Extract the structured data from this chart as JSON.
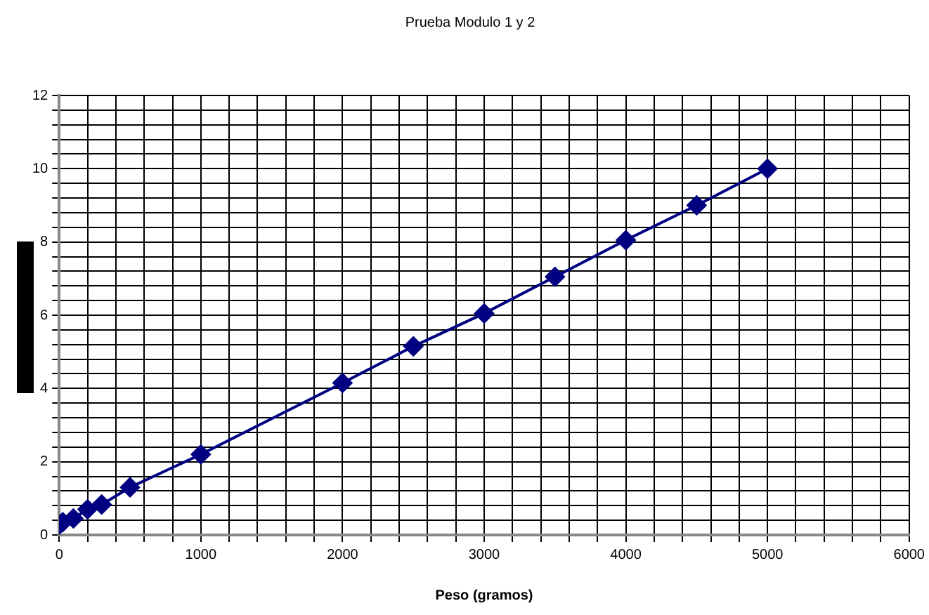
{
  "chart_data": {
    "type": "line",
    "title": "Prueba Modulo 1 y 2",
    "xlabel": "Peso (gramos)",
    "x": [
      0,
      25,
      100,
      200,
      300,
      500,
      1000,
      2000,
      2500,
      3000,
      3500,
      4000,
      4500,
      5000
    ],
    "series": [
      {
        "color": "#000080",
        "values": [
          0.28,
          0.35,
          0.45,
          0.7,
          0.83,
          1.3,
          2.2,
          4.15,
          5.15,
          6.05,
          7.05,
          8.05,
          9.0,
          10.0
        ]
      }
    ],
    "xlim": [
      0,
      6000
    ],
    "xticks": [
      0,
      {
        "value": 200,
        "label": null
      },
      {
        "value": 400,
        "label": null
      },
      {
        "value": 600,
        "label": null
      },
      {
        "value": 800,
        "label": null
      },
      1000,
      {
        "value": 1200,
        "label": null
      },
      {
        "value": 1400,
        "label": null
      },
      {
        "value": 1600,
        "label": null
      },
      {
        "value": 1800,
        "label": null
      },
      2000,
      {
        "value": 2200,
        "label": null
      },
      {
        "value": 2400,
        "label": null
      },
      {
        "value": 2600,
        "label": null
      },
      {
        "value": 2800,
        "label": null
      },
      3000,
      {
        "value": 3200,
        "label": null
      },
      {
        "value": 3400,
        "label": null
      },
      {
        "value": 3600,
        "label": null
      },
      {
        "value": 3800,
        "label": null
      },
      4000,
      {
        "value": 4200,
        "label": null
      },
      {
        "value": 4400,
        "label": null
      },
      {
        "value": 4600,
        "label": null
      },
      {
        "value": 4800,
        "label": null
      },
      5000,
      {
        "value": 5200,
        "label": null
      },
      {
        "value": 5400,
        "label": null
      },
      {
        "value": 5600,
        "label": null
      },
      {
        "value": 5800,
        "label": null
      },
      6000
    ],
    "ylim": [
      0,
      12
    ],
    "yticks": [
      0,
      {
        "value": 0.4,
        "label": null
      },
      {
        "value": 0.8,
        "label": null
      },
      {
        "value": 1.2,
        "label": null
      },
      {
        "value": 1.6,
        "label": null
      },
      2,
      {
        "value": 2.4,
        "label": null
      },
      {
        "value": 2.8,
        "label": null
      },
      {
        "value": 3.2,
        "label": null
      },
      {
        "value": 3.6,
        "label": null
      },
      4,
      {
        "value": 4.4,
        "label": null
      },
      {
        "value": 4.8,
        "label": null
      },
      {
        "value": 5.2,
        "label": null
      },
      {
        "value": 5.6,
        "label": null
      },
      6,
      {
        "value": 6.4,
        "label": null
      },
      {
        "value": 6.8,
        "label": null
      },
      {
        "value": 7.2,
        "label": null
      },
      {
        "value": 7.6,
        "label": null
      },
      8,
      {
        "value": 8.4,
        "label": null
      },
      {
        "value": 8.8,
        "label": null
      },
      {
        "value": 9.2,
        "label": null
      },
      {
        "value": 9.6,
        "label": null
      },
      10,
      {
        "value": 10.4,
        "label": null
      },
      {
        "value": 10.8,
        "label": null
      },
      {
        "value": 11.2,
        "label": null
      },
      {
        "value": 11.6,
        "label": null
      },
      12
    ],
    "grid": true,
    "legend": false,
    "marker": "diamond",
    "line_style": "solid"
  }
}
